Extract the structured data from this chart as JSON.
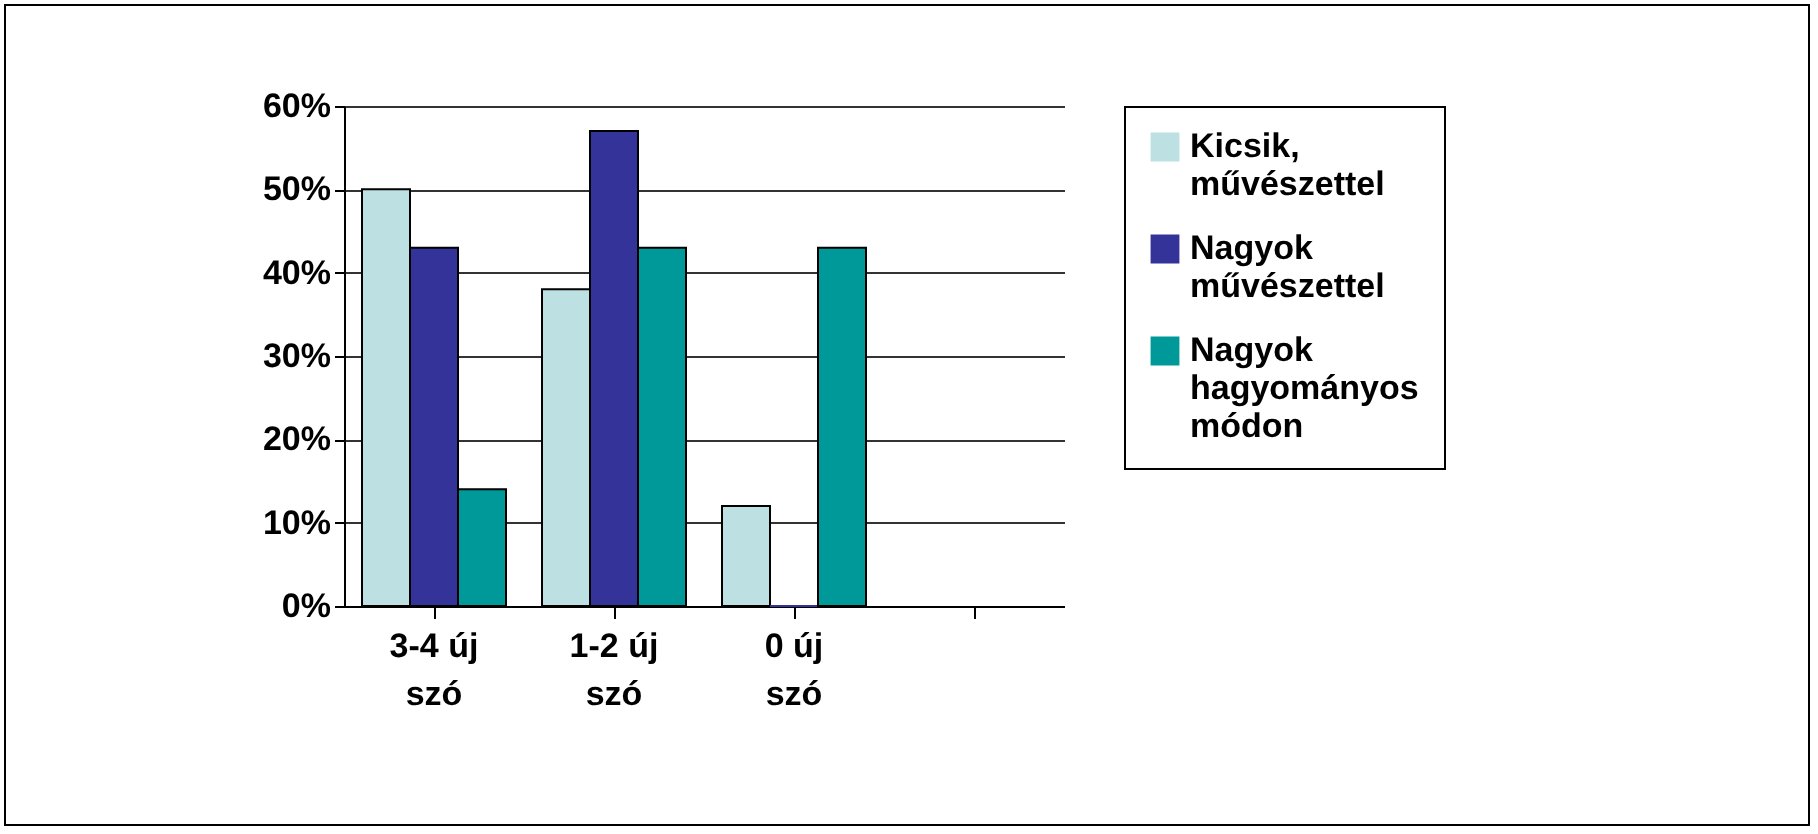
{
  "chart_data": {
    "type": "bar",
    "categories": [
      "3-4 új szó",
      "1-2 új szó",
      "0 új szó",
      null
    ],
    "series": [
      {
        "name": "Kicsik, művészettel",
        "color": "#bde0e3",
        "values": [
          50,
          38,
          12,
          null
        ]
      },
      {
        "name": "Nagyok művészettel",
        "color": "#333399",
        "values": [
          43,
          57,
          0,
          null
        ]
      },
      {
        "name": "Nagyok hagyományos módon",
        "color": "#009999",
        "values": [
          14,
          43,
          43,
          null
        ]
      }
    ],
    "ylim": [
      0,
      60
    ],
    "yticks": [
      {
        "value": 0,
        "label": "0%"
      },
      {
        "value": 10,
        "label": "10%"
      },
      {
        "value": 20,
        "label": "20%"
      },
      {
        "value": 30,
        "label": "30%"
      },
      {
        "value": 40,
        "label": "40%"
      },
      {
        "value": 50,
        "label": "50%"
      },
      {
        "value": 60,
        "label": "60%"
      }
    ],
    "grid": "y",
    "legend": "right"
  }
}
